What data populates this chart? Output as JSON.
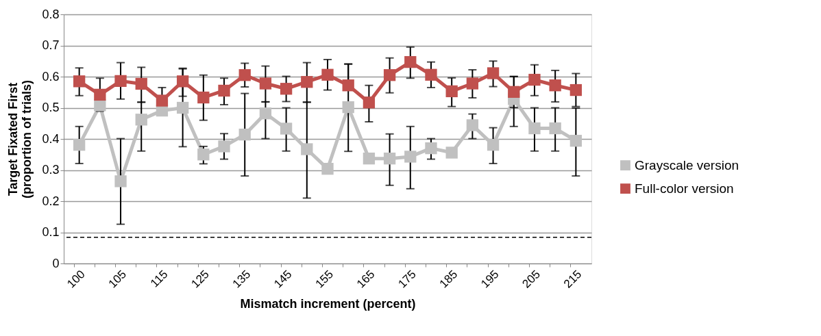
{
  "chart_data": {
    "type": "line",
    "xlabel": "Mismatch increment (percent)",
    "ylabel": "Target Fixated First\n(proportion of trials)",
    "categories": [
      "100",
      null,
      "105",
      null,
      "115",
      null,
      "125",
      null,
      "135",
      null,
      "145",
      null,
      "155",
      null,
      "165",
      null,
      "175",
      null,
      "185",
      null,
      "195",
      null,
      "205",
      null,
      "215"
    ],
    "series": [
      {
        "name": "Grayscale version",
        "color": "#c0c0c0",
        "values": [
          0.381,
          0.508,
          0.264,
          0.462,
          0.491,
          0.5,
          0.35,
          0.376,
          0.414,
          0.482,
          0.433,
          0.367,
          0.304,
          0.502,
          0.337,
          0.337,
          0.343,
          0.37,
          0.356,
          0.444,
          0.381,
          0.528,
          0.434,
          0.434,
          0.394
        ],
        "errors": [
          [
            0.321,
            0.44
          ],
          null,
          [
            0.126,
            0.401
          ],
          [
            0.361,
            0.518
          ],
          null,
          [
            0.375,
            0.625
          ],
          [
            0.32,
            0.376
          ],
          [
            0.335,
            0.417
          ],
          [
            0.281,
            0.546
          ],
          [
            0.401,
            0.519
          ],
          [
            0.361,
            0.5
          ],
          [
            0.21,
            0.518
          ],
          null,
          [
            0.36,
            0.64
          ],
          null,
          [
            0.251,
            0.416
          ],
          [
            0.24,
            0.44
          ],
          [
            0.335,
            0.401
          ],
          null,
          [
            0.401,
            0.48
          ],
          [
            0.321,
            0.436
          ],
          [
            0.44,
            0.6
          ],
          [
            0.361,
            0.5
          ],
          [
            0.361,
            0.5
          ],
          [
            0.281,
            0.499
          ]
        ]
      },
      {
        "name": "Full-color version",
        "color": "#c0504d",
        "values": [
          0.585,
          0.542,
          0.586,
          0.577,
          0.523,
          0.585,
          0.533,
          0.555,
          0.605,
          0.578,
          0.561,
          0.583,
          0.606,
          0.572,
          0.517,
          0.605,
          0.647,
          0.606,
          0.553,
          0.578,
          0.611,
          0.551,
          0.59,
          0.572,
          0.557
        ],
        "errors": [
          [
            0.539,
            0.628
          ],
          [
            0.489,
            0.595
          ],
          [
            0.528,
            0.645
          ],
          [
            0.518,
            0.63
          ],
          [
            0.523,
            0.565
          ],
          [
            0.537,
            0.627
          ],
          [
            0.46,
            0.605
          ],
          [
            0.51,
            0.595
          ],
          [
            0.567,
            0.643
          ],
          [
            0.519,
            0.634
          ],
          [
            0.52,
            0.601
          ],
          [
            0.518,
            0.645
          ],
          [
            0.557,
            0.655
          ],
          [
            0.572,
            0.641
          ],
          [
            0.455,
            0.572
          ],
          [
            0.548,
            0.66
          ],
          [
            0.595,
            0.695
          ],
          [
            0.565,
            0.647
          ],
          [
            0.504,
            0.596
          ],
          [
            0.532,
            0.622
          ],
          [
            0.568,
            0.65
          ],
          [
            0.501,
            0.601
          ],
          [
            0.539,
            0.638
          ],
          [
            0.519,
            0.62
          ],
          [
            0.504,
            0.61
          ]
        ]
      }
    ],
    "ylim": [
      0,
      0.8
    ],
    "yticks": [
      0,
      0.1,
      0.2,
      0.3,
      0.4,
      0.5,
      0.6,
      0.7,
      0.8
    ],
    "ref_lines": [
      {
        "axis": "y",
        "value": 0.084,
        "color": "#000000",
        "line_style": "dashed"
      }
    ],
    "grid": "y",
    "legend": "right",
    "marker": "square",
    "line_style": "solid"
  }
}
